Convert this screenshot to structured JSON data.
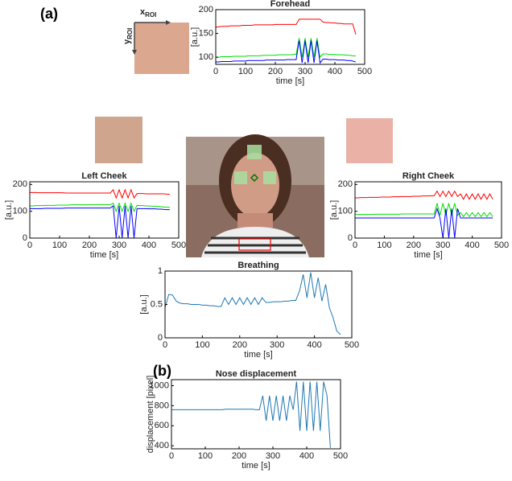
{
  "panel_labels": [
    "(a)",
    "(b)"
  ],
  "roi_axes": {
    "x": {
      "base": "x",
      "sub": "ROI"
    },
    "y": {
      "base": "y",
      "sub": "ROI"
    }
  },
  "chart_data": [
    {
      "type": "line",
      "title": "Forehead",
      "xlabel": "time [s]",
      "ylabel": "[a.u.]",
      "xlim": [
        0,
        500
      ],
      "xticks": [
        0,
        100,
        200,
        300,
        400,
        500
      ],
      "ylim": [
        85,
        200
      ],
      "yticks": [
        100,
        150,
        200
      ],
      "x": [
        0,
        10,
        20,
        30,
        40,
        50,
        60,
        70,
        80,
        90,
        100,
        110,
        120,
        130,
        140,
        150,
        160,
        170,
        180,
        190,
        200,
        210,
        220,
        230,
        240,
        250,
        260,
        270,
        280,
        290,
        300,
        310,
        320,
        330,
        340,
        350,
        360,
        370,
        380,
        390,
        400,
        410,
        420,
        430,
        440,
        450,
        460,
        470
      ],
      "series": [
        {
          "color": "#ff0000",
          "values": [
            163,
            164,
            165,
            165,
            165,
            166,
            166,
            166,
            166,
            167,
            167,
            167,
            167,
            168,
            168,
            168,
            168,
            168,
            168,
            168,
            169,
            169,
            169,
            169,
            169,
            169,
            169,
            169,
            180,
            180,
            180,
            180,
            180,
            180,
            180,
            180,
            174,
            173,
            173,
            172,
            172,
            171,
            171,
            170,
            170,
            170,
            170,
            148
          ]
        },
        {
          "color": "#00dd00",
          "values": [
            100,
            100,
            101,
            101,
            101,
            101,
            102,
            102,
            102,
            102,
            102,
            103,
            103,
            103,
            103,
            103,
            104,
            104,
            104,
            104,
            104,
            105,
            105,
            105,
            105,
            105,
            106,
            106,
            140,
            100,
            140,
            100,
            140,
            100,
            140,
            100,
            107,
            107,
            106,
            106,
            106,
            105,
            105,
            105,
            104,
            104,
            103,
            103
          ]
        },
        {
          "color": "#0000ff",
          "values": [
            90,
            90,
            91,
            91,
            91,
            91,
            92,
            92,
            92,
            92,
            92,
            93,
            93,
            93,
            93,
            93,
            93,
            94,
            94,
            94,
            94,
            94,
            94,
            94,
            95,
            95,
            95,
            95,
            135,
            88,
            135,
            88,
            135,
            88,
            135,
            88,
            96,
            96,
            95,
            95,
            95,
            94,
            94,
            94,
            93,
            93,
            92,
            90
          ]
        }
      ]
    },
    {
      "type": "line",
      "title": "Left Cheek",
      "xlabel": "time [s]",
      "ylabel": "[a.u.]",
      "xlim": [
        0,
        500
      ],
      "xticks": [
        0,
        100,
        200,
        300,
        400,
        500
      ],
      "ylim": [
        0,
        210
      ],
      "yticks": [
        0,
        100,
        200
      ],
      "x": [
        0,
        10,
        20,
        30,
        40,
        50,
        60,
        70,
        80,
        90,
        100,
        110,
        120,
        130,
        140,
        150,
        160,
        170,
        180,
        190,
        200,
        210,
        220,
        230,
        240,
        250,
        260,
        270,
        280,
        290,
        300,
        310,
        320,
        330,
        340,
        350,
        360,
        370,
        380,
        390,
        400,
        410,
        420,
        430,
        440,
        450,
        460,
        470
      ],
      "series": [
        {
          "color": "#ff0000",
          "values": [
            170,
            170,
            170,
            169,
            169,
            169,
            169,
            169,
            169,
            169,
            169,
            169,
            168,
            168,
            168,
            168,
            168,
            168,
            168,
            168,
            168,
            168,
            168,
            168,
            168,
            168,
            168,
            168,
            180,
            150,
            180,
            150,
            180,
            150,
            180,
            150,
            166,
            166,
            166,
            165,
            165,
            165,
            165,
            165,
            165,
            165,
            164,
            164
          ]
        },
        {
          "color": "#00dd00",
          "values": [
            120,
            120,
            121,
            121,
            121,
            122,
            122,
            122,
            122,
            123,
            123,
            123,
            123,
            123,
            124,
            124,
            124,
            124,
            124,
            124,
            125,
            125,
            125,
            125,
            125,
            125,
            125,
            125,
            130,
            100,
            130,
            100,
            130,
            100,
            130,
            100,
            122,
            121,
            121,
            120,
            120,
            119,
            119,
            118,
            117,
            116,
            115,
            115
          ]
        },
        {
          "color": "#0000ff",
          "values": [
            110,
            110,
            110,
            110,
            110,
            111,
            111,
            111,
            111,
            111,
            111,
            111,
            112,
            112,
            112,
            112,
            112,
            112,
            112,
            112,
            112,
            112,
            112,
            112,
            112,
            112,
            112,
            112,
            120,
            0,
            120,
            0,
            120,
            0,
            120,
            0,
            110,
            110,
            110,
            110,
            109,
            109,
            109,
            108,
            108,
            107,
            106,
            106
          ]
        }
      ]
    },
    {
      "type": "line",
      "title": "Right Cheek",
      "xlabel": "time [s]",
      "ylabel": "[a.u.]",
      "xlim": [
        0,
        500
      ],
      "xticks": [
        0,
        100,
        200,
        300,
        400,
        500
      ],
      "ylim": [
        0,
        210
      ],
      "yticks": [
        0,
        100,
        200
      ],
      "x": [
        0,
        10,
        20,
        30,
        40,
        50,
        60,
        70,
        80,
        90,
        100,
        110,
        120,
        130,
        140,
        150,
        160,
        170,
        180,
        190,
        200,
        210,
        220,
        230,
        240,
        250,
        260,
        270,
        280,
        290,
        300,
        310,
        320,
        330,
        340,
        350,
        360,
        370,
        380,
        390,
        400,
        410,
        420,
        430,
        440,
        450,
        460,
        470
      ],
      "series": [
        {
          "color": "#ff0000",
          "values": [
            150,
            150,
            151,
            151,
            151,
            152,
            152,
            152,
            152,
            153,
            153,
            153,
            153,
            154,
            154,
            154,
            155,
            155,
            155,
            155,
            156,
            156,
            156,
            157,
            157,
            157,
            158,
            158,
            175,
            155,
            175,
            155,
            175,
            155,
            175,
            155,
            165,
            145,
            165,
            145,
            165,
            145,
            165,
            145,
            165,
            145,
            165,
            145
          ]
        },
        {
          "color": "#00dd00",
          "values": [
            88,
            88,
            88,
            88,
            88,
            88,
            89,
            89,
            89,
            89,
            89,
            89,
            89,
            89,
            89,
            89,
            90,
            90,
            90,
            90,
            90,
            90,
            90,
            90,
            90,
            90,
            90,
            90,
            130,
            85,
            130,
            85,
            130,
            85,
            130,
            85,
            95,
            80,
            95,
            80,
            95,
            80,
            95,
            80,
            95,
            80,
            95,
            80
          ]
        },
        {
          "color": "#0000ff",
          "values": [
            75,
            75,
            75,
            75,
            75,
            75,
            75,
            75,
            75,
            75,
            75,
            75,
            75,
            75,
            75,
            75,
            75,
            75,
            75,
            75,
            75,
            75,
            75,
            75,
            75,
            75,
            75,
            75,
            110,
            75,
            0,
            110,
            0,
            110,
            0,
            110,
            75,
            75,
            75,
            75,
            75,
            75,
            75,
            75,
            75,
            75,
            75,
            75
          ]
        }
      ]
    },
    {
      "type": "line",
      "title": "Breathing",
      "xlabel": "time [s]",
      "ylabel": "[a.u.]",
      "xlim": [
        0,
        500
      ],
      "xticks": [
        0,
        100,
        200,
        300,
        400,
        500
      ],
      "ylim": [
        0,
        1
      ],
      "yticks": [
        0,
        0.5,
        1
      ],
      "x": [
        0,
        10,
        20,
        30,
        40,
        50,
        60,
        70,
        80,
        90,
        100,
        110,
        120,
        130,
        140,
        150,
        160,
        170,
        180,
        190,
        200,
        210,
        220,
        230,
        240,
        250,
        260,
        270,
        280,
        290,
        300,
        310,
        320,
        330,
        340,
        350,
        360,
        370,
        380,
        390,
        400,
        410,
        420,
        430,
        440,
        450,
        460,
        470
      ],
      "series": [
        {
          "color": "#1f77b4",
          "values": [
            0.45,
            0.65,
            0.64,
            0.55,
            0.52,
            0.51,
            0.51,
            0.5,
            0.5,
            0.5,
            0.49,
            0.49,
            0.48,
            0.48,
            0.47,
            0.47,
            0.6,
            0.5,
            0.6,
            0.5,
            0.6,
            0.5,
            0.6,
            0.5,
            0.6,
            0.5,
            0.6,
            0.53,
            0.53,
            0.54,
            0.54,
            0.54,
            0.55,
            0.55,
            0.56,
            0.56,
            0.7,
            0.95,
            0.6,
            0.98,
            0.6,
            0.9,
            0.55,
            0.8,
            0.45,
            0.3,
            0.1,
            0.05
          ]
        }
      ]
    },
    {
      "type": "line",
      "title": "Nose displacement",
      "xlabel": "time [s]",
      "ylabel": "displacement [pixel]",
      "xlim": [
        0,
        500
      ],
      "xticks": [
        0,
        100,
        200,
        300,
        400,
        500
      ],
      "ylim": [
        370,
        1060
      ],
      "yticks": [
        400,
        600,
        800,
        1000
      ],
      "x": [
        0,
        10,
        20,
        30,
        40,
        50,
        60,
        70,
        80,
        90,
        100,
        110,
        120,
        130,
        140,
        150,
        160,
        170,
        180,
        190,
        200,
        210,
        220,
        230,
        240,
        250,
        260,
        270,
        280,
        290,
        300,
        310,
        320,
        330,
        340,
        350,
        360,
        370,
        380,
        390,
        400,
        410,
        420,
        430,
        440,
        450,
        460,
        470
      ],
      "series": [
        {
          "color": "#1f77b4",
          "values": [
            760,
            760,
            760,
            760,
            760,
            760,
            760,
            760,
            760,
            760,
            760,
            760,
            760,
            760,
            760,
            760,
            765,
            765,
            765,
            765,
            765,
            765,
            765,
            765,
            765,
            760,
            760,
            900,
            650,
            900,
            650,
            900,
            650,
            900,
            650,
            900,
            760,
            1040,
            550,
            1040,
            550,
            1040,
            550,
            1040,
            550,
            1040,
            900,
            380
          ]
        }
      ]
    }
  ]
}
